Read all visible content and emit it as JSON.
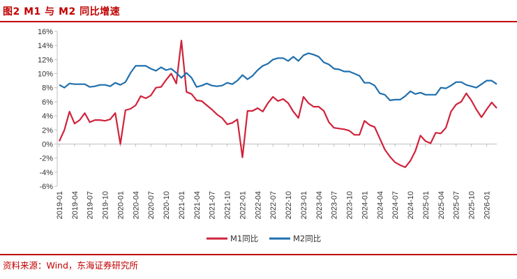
{
  "header": {
    "title": "图2  M1 与 M2 同比增速"
  },
  "footer": {
    "source": "资料来源：Wind，东海证券研究所"
  },
  "chart_data": {
    "type": "line",
    "title": "M1 与 M2 同比增速",
    "xlabel": "",
    "ylabel": "",
    "ylim": [
      -6,
      16
    ],
    "yticks": [
      -6,
      -4,
      -2,
      0,
      2,
      4,
      6,
      8,
      10,
      12,
      14,
      16
    ],
    "ytick_labels": [
      "-6%",
      "-4%",
      "-2%",
      "0%",
      "2%",
      "4%",
      "6%",
      "8%",
      "10%",
      "12%",
      "14%",
      "16%"
    ],
    "x_tick_labels": [
      "2019-01",
      "2019-04",
      "2019-07",
      "2019-10",
      "2020-01",
      "2020-04",
      "2020-07",
      "2020-10",
      "2021-01",
      "2021-04",
      "2021-07",
      "2021-10",
      "2022-01",
      "2022-04",
      "2022-07",
      "2022-10",
      "2023-01",
      "2023-04",
      "2023-07",
      "2023-10",
      "2024-01",
      "2024-04",
      "2024-07",
      "2024-10",
      "2025-01",
      "2025-04",
      "2025-07",
      "2025-10",
      "2026-01"
    ],
    "x_tick_every_n_months": 3,
    "n_points": 87,
    "colors": {
      "M1同比": "#d0223b",
      "M2同比": "#1f6fad",
      "accent": "#c00000"
    },
    "grid": false,
    "legend_position": "bottom-center",
    "series": [
      {
        "name": "M1同比",
        "values": [
          0.4,
          2.0,
          4.6,
          2.9,
          3.4,
          4.4,
          3.1,
          3.4,
          3.4,
          3.3,
          3.5,
          4.4,
          0.0,
          4.8,
          5.0,
          5.5,
          6.8,
          6.5,
          6.9,
          8.0,
          8.1,
          9.1,
          10.0,
          8.6,
          14.7,
          7.4,
          7.1,
          6.2,
          6.1,
          5.5,
          4.9,
          4.2,
          3.7,
          2.8,
          3.0,
          3.5,
          -1.9,
          4.7,
          4.7,
          5.1,
          4.6,
          5.8,
          6.7,
          6.1,
          6.4,
          5.8,
          4.6,
          3.7,
          6.7,
          5.8,
          5.3,
          5.3,
          4.7,
          3.1,
          2.3,
          2.2,
          2.1,
          1.9,
          1.3,
          1.3,
          3.3,
          2.7,
          2.4,
          0.8,
          -0.8,
          -1.8,
          -2.6,
          -3.0,
          -3.3,
          -2.4,
          -1.0,
          1.2,
          0.4,
          0.1,
          1.6,
          1.5,
          2.3,
          4.6,
          5.6,
          6.0,
          7.2,
          6.2,
          4.9,
          3.8,
          4.9,
          5.9,
          5.1
        ]
      },
      {
        "name": "M2同比",
        "values": [
          8.4,
          8.0,
          8.6,
          8.5,
          8.5,
          8.5,
          8.1,
          8.2,
          8.4,
          8.4,
          8.2,
          8.7,
          8.4,
          8.8,
          10.1,
          11.1,
          11.1,
          11.1,
          10.7,
          10.4,
          10.9,
          10.5,
          10.7,
          10.1,
          9.4,
          10.1,
          9.4,
          8.1,
          8.3,
          8.6,
          8.3,
          8.2,
          8.3,
          8.7,
          8.5,
          9.0,
          9.8,
          9.2,
          9.7,
          10.5,
          11.1,
          11.4,
          12.0,
          12.2,
          12.2,
          11.8,
          12.4,
          11.8,
          12.6,
          12.9,
          12.7,
          12.4,
          11.6,
          11.3,
          10.7,
          10.6,
          10.3,
          10.3,
          10.0,
          9.7,
          8.7,
          8.7,
          8.3,
          7.2,
          7.0,
          6.2,
          6.3,
          6.3,
          6.8,
          7.5,
          7.1,
          7.3,
          7.0,
          7.0,
          7.0,
          8.0,
          7.9,
          8.3,
          8.8,
          8.8,
          8.4,
          8.2,
          8.0,
          8.5,
          9.0,
          9.0,
          8.5
        ]
      }
    ]
  }
}
